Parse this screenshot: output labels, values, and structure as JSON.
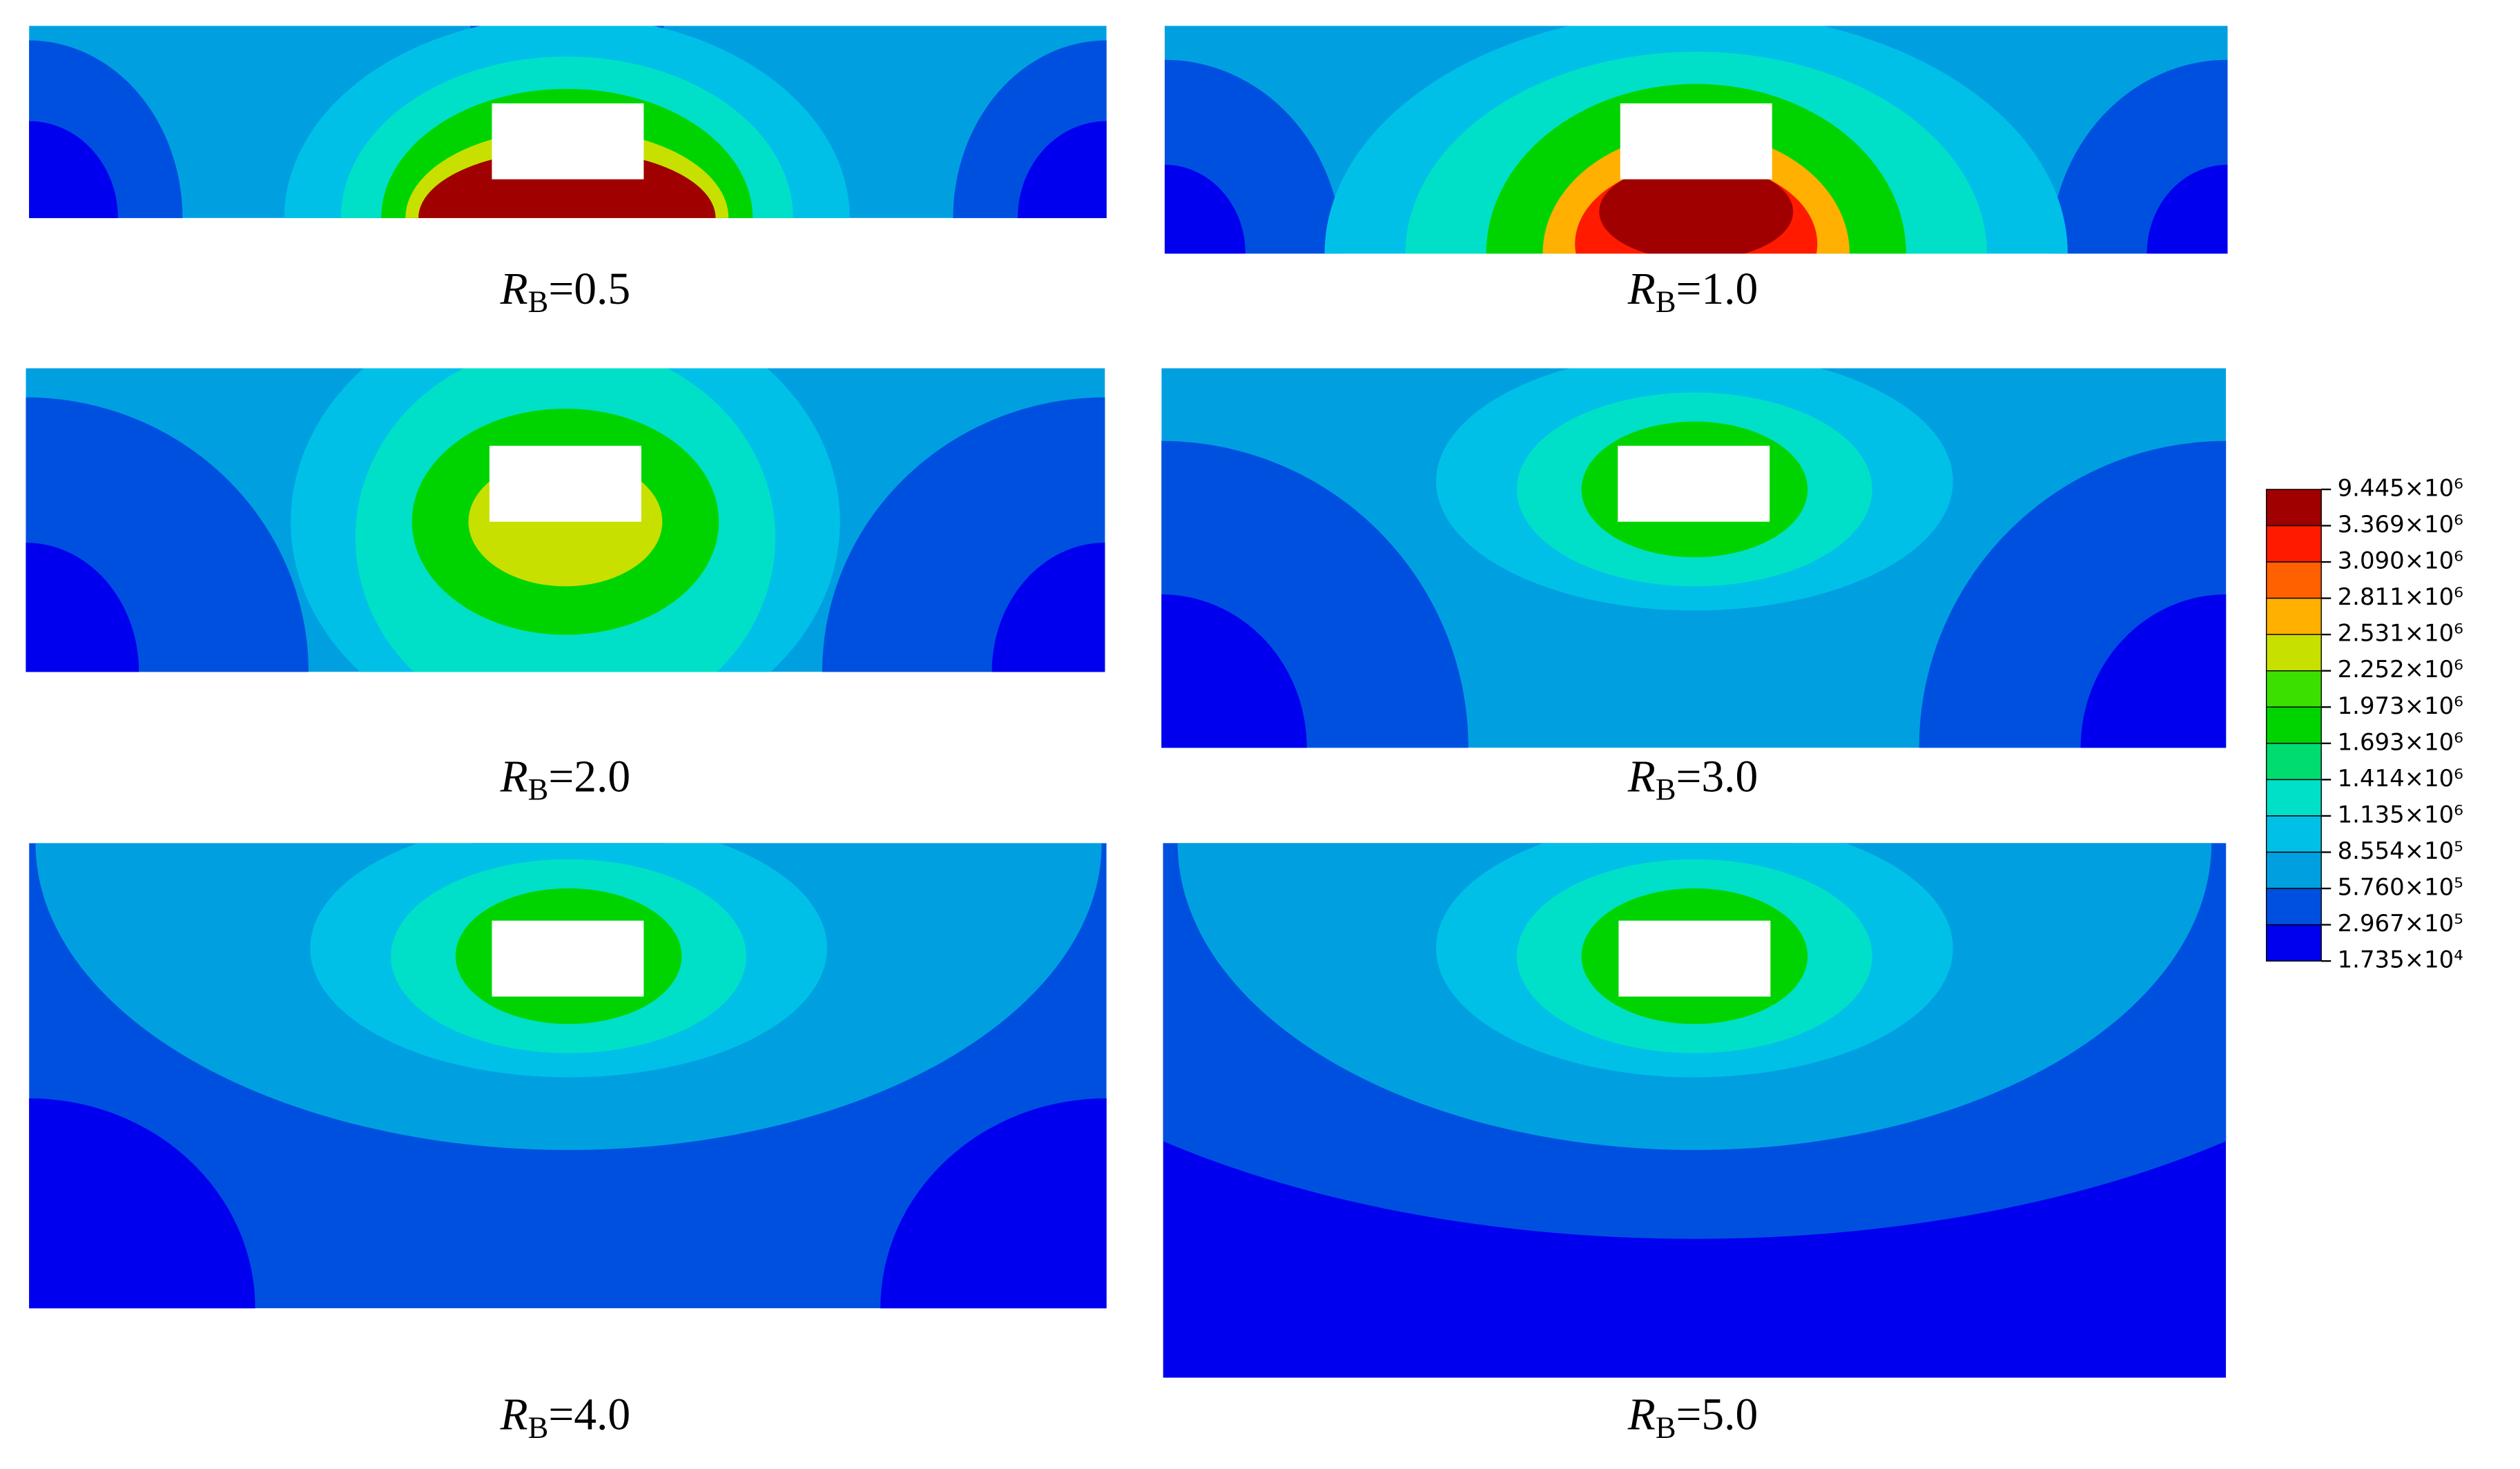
{
  "panels": [
    {
      "symbol": "R",
      "subscript": "B",
      "value": "=0.5"
    },
    {
      "symbol": "R",
      "subscript": "B",
      "value": "=1.0"
    },
    {
      "symbol": "R",
      "subscript": "B",
      "value": "=2.0"
    },
    {
      "symbol": "R",
      "subscript": "B",
      "value": "=3.0"
    },
    {
      "symbol": "R",
      "subscript": "B",
      "value": "=4.0"
    },
    {
      "symbol": "R",
      "subscript": "B",
      "value": "=5.0"
    }
  ],
  "legend": {
    "labels": [
      "9.445×10⁶",
      "3.369×10⁶",
      "3.090×10⁶",
      "2.811×10⁶",
      "2.531×10⁶",
      "2.252×10⁶",
      "1.973×10⁶",
      "1.693×10⁶",
      "1.414×10⁶",
      "1.135×10⁶",
      "8.554×10⁵",
      "5.760×10⁵",
      "2.967×10⁵",
      "1.735×10⁴"
    ],
    "colors": [
      "#a00000",
      "#ff1a00",
      "#ff6000",
      "#ffb000",
      "#c8e000",
      "#3ce000",
      "#00d400",
      "#00dc70",
      "#00e0c8",
      "#00c0e8",
      "#00a0e0",
      "#0050e0",
      "#0000ee"
    ]
  }
}
